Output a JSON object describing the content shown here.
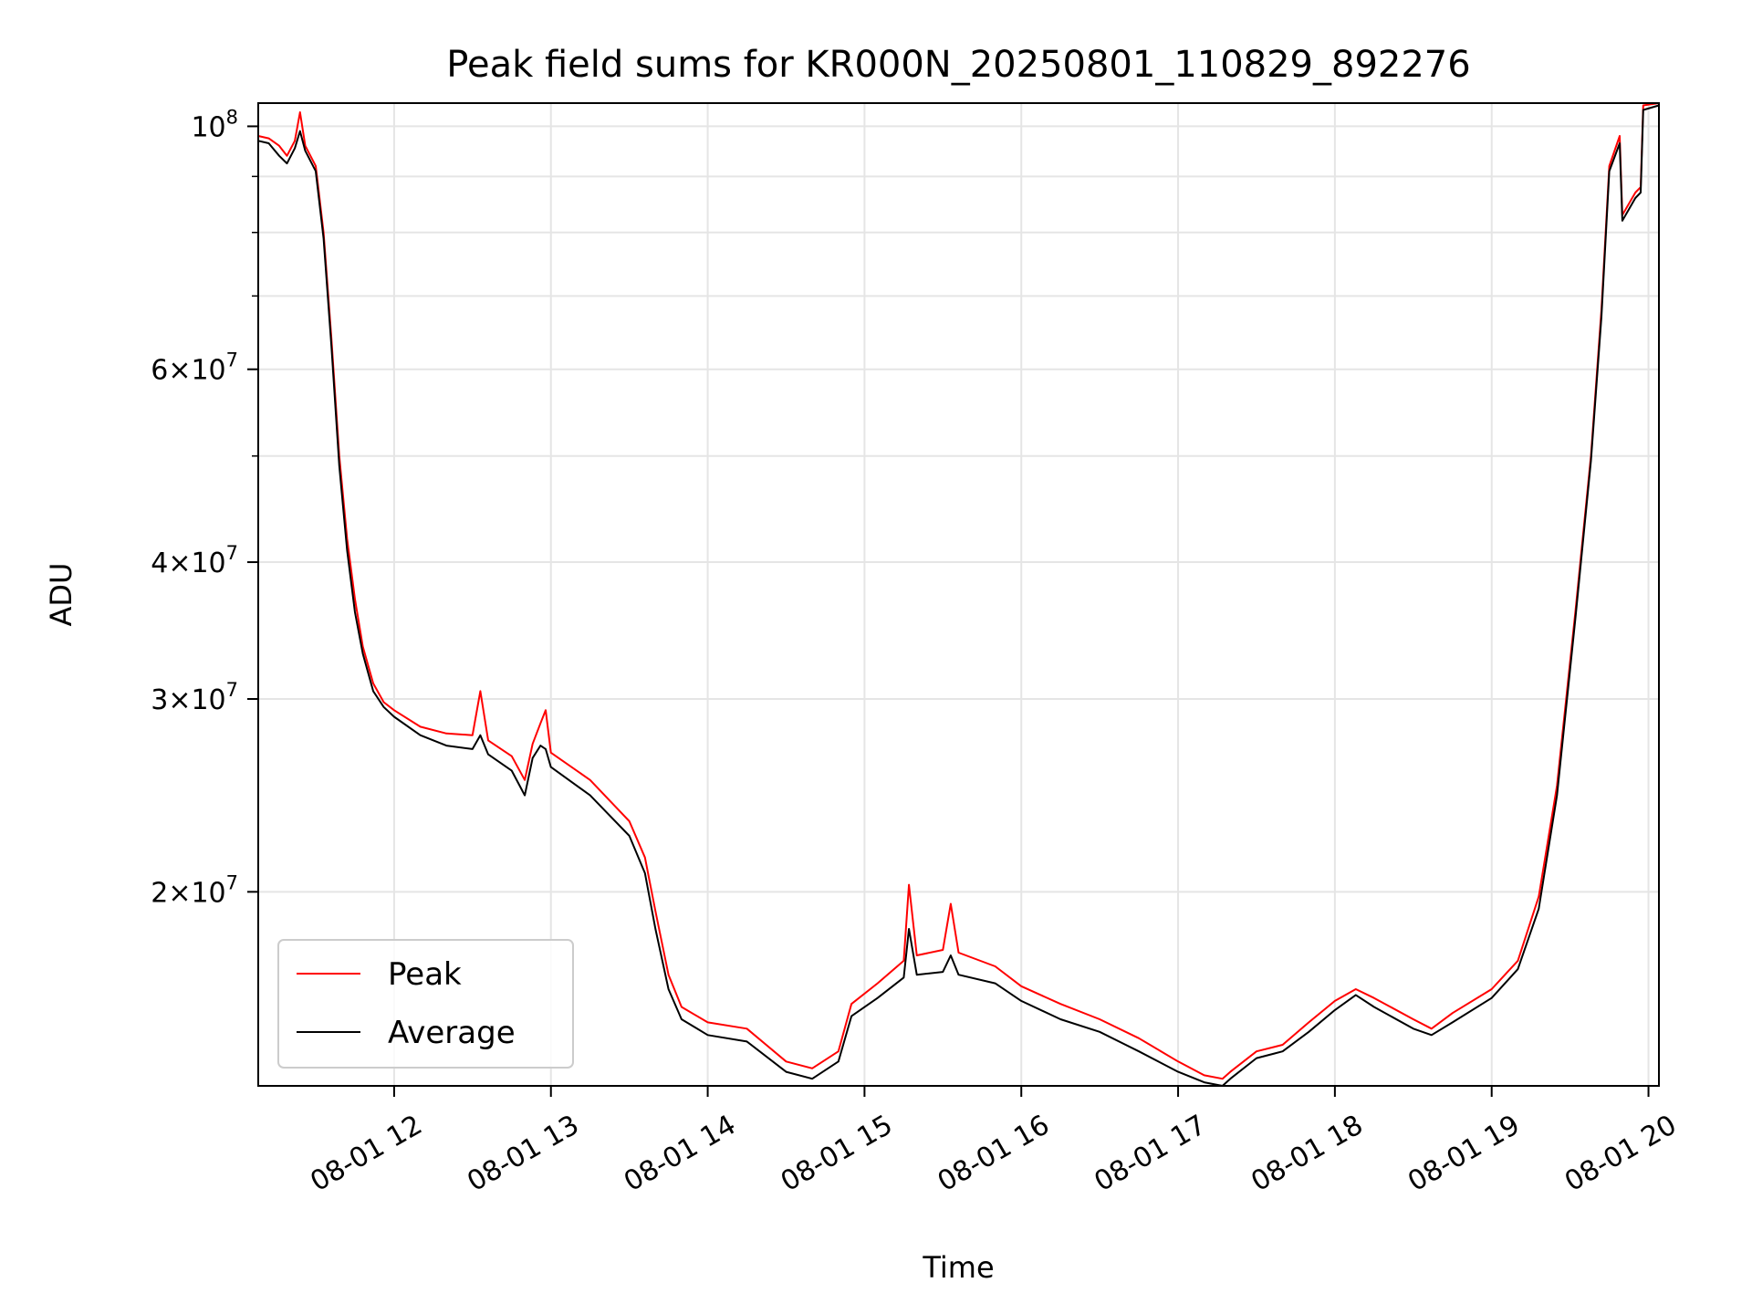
{
  "chart_data": {
    "type": "line",
    "title": "Peak field sums for KR000N_20250801_110829_892276",
    "xlabel": "Time",
    "ylabel": "ADU",
    "yscale": "log",
    "grid": true,
    "legend_position": "lower-left",
    "xlim": [
      "2025-08-01 11:08",
      "2025-08-01 20:04"
    ],
    "ylim": [
      13300000,
      105000000
    ],
    "x_ticks": [
      {
        "value": "2025-08-01 12:00",
        "label": "08-01 12"
      },
      {
        "value": "2025-08-01 13:00",
        "label": "08-01 13"
      },
      {
        "value": "2025-08-01 14:00",
        "label": "08-01 14"
      },
      {
        "value": "2025-08-01 15:00",
        "label": "08-01 15"
      },
      {
        "value": "2025-08-01 16:00",
        "label": "08-01 16"
      },
      {
        "value": "2025-08-01 17:00",
        "label": "08-01 17"
      },
      {
        "value": "2025-08-01 18:00",
        "label": "08-01 18"
      },
      {
        "value": "2025-08-01 19:00",
        "label": "08-01 19"
      },
      {
        "value": "2025-08-01 20:00",
        "label": "08-01 20"
      }
    ],
    "y_major_ticks": [
      {
        "value": 20000000,
        "mantissa": "2",
        "exponent": "7"
      },
      {
        "value": 30000000,
        "mantissa": "3",
        "exponent": "7"
      },
      {
        "value": 40000000,
        "mantissa": "4",
        "exponent": "7"
      },
      {
        "value": 60000000,
        "mantissa": "6",
        "exponent": "7"
      },
      {
        "value": 100000000,
        "mantissa": "",
        "exponent": "8"
      }
    ],
    "y_minor_gridlines": [
      50000000,
      70000000,
      80000000,
      90000000
    ],
    "series": [
      {
        "name": "Peak",
        "color": "#ff0000",
        "points": [
          [
            "2025-08-01 11:08",
            98000000
          ],
          [
            "2025-08-01 11:12",
            97500000
          ],
          [
            "2025-08-01 11:16",
            96000000
          ],
          [
            "2025-08-01 11:19",
            94000000
          ],
          [
            "2025-08-01 11:22",
            97000000
          ],
          [
            "2025-08-01 11:24",
            103000000
          ],
          [
            "2025-08-01 11:26",
            96000000
          ],
          [
            "2025-08-01 11:30",
            92000000
          ],
          [
            "2025-08-01 11:33",
            80000000
          ],
          [
            "2025-08-01 11:36",
            64000000
          ],
          [
            "2025-08-01 11:39",
            50000000
          ],
          [
            "2025-08-01 11:42",
            42000000
          ],
          [
            "2025-08-01 11:45",
            37000000
          ],
          [
            "2025-08-01 11:48",
            33500000
          ],
          [
            "2025-08-01 11:52",
            31000000
          ],
          [
            "2025-08-01 11:56",
            29800000
          ],
          [
            "2025-08-01 12:00",
            29300000
          ],
          [
            "2025-08-01 12:10",
            28300000
          ],
          [
            "2025-08-01 12:20",
            27900000
          ],
          [
            "2025-08-01 12:30",
            27800000
          ],
          [
            "2025-08-01 12:33",
            30500000
          ],
          [
            "2025-08-01 12:36",
            27500000
          ],
          [
            "2025-08-01 12:45",
            26600000
          ],
          [
            "2025-08-01 12:50",
            25300000
          ],
          [
            "2025-08-01 12:53",
            27300000
          ],
          [
            "2025-08-01 12:56",
            28500000
          ],
          [
            "2025-08-01 12:58",
            29300000
          ],
          [
            "2025-08-01 13:00",
            26800000
          ],
          [
            "2025-08-01 13:15",
            25300000
          ],
          [
            "2025-08-01 13:30",
            23200000
          ],
          [
            "2025-08-01 13:36",
            21500000
          ],
          [
            "2025-08-01 13:40",
            19200000
          ],
          [
            "2025-08-01 13:45",
            16800000
          ],
          [
            "2025-08-01 13:50",
            15700000
          ],
          [
            "2025-08-01 14:00",
            15200000
          ],
          [
            "2025-08-01 14:15",
            15000000
          ],
          [
            "2025-08-01 14:30",
            14000000
          ],
          [
            "2025-08-01 14:40",
            13800000
          ],
          [
            "2025-08-01 14:50",
            14300000
          ],
          [
            "2025-08-01 14:55",
            15800000
          ],
          [
            "2025-08-01 15:05",
            16500000
          ],
          [
            "2025-08-01 15:15",
            17300000
          ],
          [
            "2025-08-01 15:17",
            20300000
          ],
          [
            "2025-08-01 15:20",
            17500000
          ],
          [
            "2025-08-01 15:30",
            17700000
          ],
          [
            "2025-08-01 15:33",
            19500000
          ],
          [
            "2025-08-01 15:36",
            17600000
          ],
          [
            "2025-08-01 15:50",
            17100000
          ],
          [
            "2025-08-01 16:00",
            16400000
          ],
          [
            "2025-08-01 16:15",
            15800000
          ],
          [
            "2025-08-01 16:30",
            15300000
          ],
          [
            "2025-08-01 16:45",
            14700000
          ],
          [
            "2025-08-01 17:00",
            14000000
          ],
          [
            "2025-08-01 17:10",
            13600000
          ],
          [
            "2025-08-01 17:17",
            13500000
          ],
          [
            "2025-08-01 17:20",
            13700000
          ],
          [
            "2025-08-01 17:30",
            14300000
          ],
          [
            "2025-08-01 17:40",
            14500000
          ],
          [
            "2025-08-01 17:50",
            15200000
          ],
          [
            "2025-08-01 18:00",
            15900000
          ],
          [
            "2025-08-01 18:08",
            16300000
          ],
          [
            "2025-08-01 18:15",
            16000000
          ],
          [
            "2025-08-01 18:30",
            15300000
          ],
          [
            "2025-08-01 18:37",
            15000000
          ],
          [
            "2025-08-01 18:45",
            15500000
          ],
          [
            "2025-08-01 19:00",
            16300000
          ],
          [
            "2025-08-01 19:10",
            17300000
          ],
          [
            "2025-08-01 19:18",
            19800000
          ],
          [
            "2025-08-01 19:25",
            25000000
          ],
          [
            "2025-08-01 19:32",
            36000000
          ],
          [
            "2025-08-01 19:38",
            50000000
          ],
          [
            "2025-08-01 19:42",
            68000000
          ],
          [
            "2025-08-01 19:45",
            92000000
          ],
          [
            "2025-08-01 19:49",
            98000000
          ],
          [
            "2025-08-01 19:50",
            83000000
          ],
          [
            "2025-08-01 19:55",
            87000000
          ],
          [
            "2025-08-01 19:57",
            88000000
          ],
          [
            "2025-08-01 19:58",
            104500000
          ],
          [
            "2025-08-01 20:04",
            105000000
          ]
        ]
      },
      {
        "name": "Average",
        "color": "#000000",
        "points": [
          [
            "2025-08-01 11:08",
            97000000
          ],
          [
            "2025-08-01 11:12",
            96500000
          ],
          [
            "2025-08-01 11:16",
            94000000
          ],
          [
            "2025-08-01 11:19",
            92500000
          ],
          [
            "2025-08-01 11:22",
            95500000
          ],
          [
            "2025-08-01 11:24",
            99000000
          ],
          [
            "2025-08-01 11:26",
            95000000
          ],
          [
            "2025-08-01 11:30",
            91000000
          ],
          [
            "2025-08-01 11:33",
            79000000
          ],
          [
            "2025-08-01 11:36",
            63000000
          ],
          [
            "2025-08-01 11:39",
            49000000
          ],
          [
            "2025-08-01 11:42",
            41000000
          ],
          [
            "2025-08-01 11:45",
            36000000
          ],
          [
            "2025-08-01 11:48",
            33000000
          ],
          [
            "2025-08-01 11:52",
            30500000
          ],
          [
            "2025-08-01 11:56",
            29500000
          ],
          [
            "2025-08-01 12:00",
            28900000
          ],
          [
            "2025-08-01 12:10",
            27800000
          ],
          [
            "2025-08-01 12:20",
            27200000
          ],
          [
            "2025-08-01 12:30",
            27000000
          ],
          [
            "2025-08-01 12:33",
            27800000
          ],
          [
            "2025-08-01 12:36",
            26700000
          ],
          [
            "2025-08-01 12:45",
            25800000
          ],
          [
            "2025-08-01 12:50",
            24500000
          ],
          [
            "2025-08-01 12:53",
            26500000
          ],
          [
            "2025-08-01 12:56",
            27200000
          ],
          [
            "2025-08-01 12:58",
            27000000
          ],
          [
            "2025-08-01 13:00",
            26000000
          ],
          [
            "2025-08-01 13:15",
            24500000
          ],
          [
            "2025-08-01 13:30",
            22500000
          ],
          [
            "2025-08-01 13:36",
            20800000
          ],
          [
            "2025-08-01 13:40",
            18500000
          ],
          [
            "2025-08-01 13:45",
            16300000
          ],
          [
            "2025-08-01 13:50",
            15300000
          ],
          [
            "2025-08-01 14:00",
            14800000
          ],
          [
            "2025-08-01 14:15",
            14600000
          ],
          [
            "2025-08-01 14:30",
            13700000
          ],
          [
            "2025-08-01 14:40",
            13500000
          ],
          [
            "2025-08-01 14:50",
            14000000
          ],
          [
            "2025-08-01 14:55",
            15400000
          ],
          [
            "2025-08-01 15:05",
            16000000
          ],
          [
            "2025-08-01 15:15",
            16700000
          ],
          [
            "2025-08-01 15:17",
            18500000
          ],
          [
            "2025-08-01 15:20",
            16800000
          ],
          [
            "2025-08-01 15:30",
            16900000
          ],
          [
            "2025-08-01 15:33",
            17500000
          ],
          [
            "2025-08-01 15:36",
            16800000
          ],
          [
            "2025-08-01 15:50",
            16500000
          ],
          [
            "2025-08-01 16:00",
            15900000
          ],
          [
            "2025-08-01 16:15",
            15300000
          ],
          [
            "2025-08-01 16:30",
            14900000
          ],
          [
            "2025-08-01 16:45",
            14300000
          ],
          [
            "2025-08-01 17:00",
            13700000
          ],
          [
            "2025-08-01 17:10",
            13400000
          ],
          [
            "2025-08-01 17:17",
            13300000
          ],
          [
            "2025-08-01 17:20",
            13500000
          ],
          [
            "2025-08-01 17:30",
            14100000
          ],
          [
            "2025-08-01 17:40",
            14300000
          ],
          [
            "2025-08-01 17:50",
            14900000
          ],
          [
            "2025-08-01 18:00",
            15600000
          ],
          [
            "2025-08-01 18:08",
            16100000
          ],
          [
            "2025-08-01 18:15",
            15700000
          ],
          [
            "2025-08-01 18:30",
            15000000
          ],
          [
            "2025-08-01 18:37",
            14800000
          ],
          [
            "2025-08-01 18:45",
            15200000
          ],
          [
            "2025-08-01 19:00",
            16000000
          ],
          [
            "2025-08-01 19:10",
            17000000
          ],
          [
            "2025-08-01 19:18",
            19300000
          ],
          [
            "2025-08-01 19:25",
            24500000
          ],
          [
            "2025-08-01 19:32",
            35500000
          ],
          [
            "2025-08-01 19:38",
            49500000
          ],
          [
            "2025-08-01 19:42",
            67000000
          ],
          [
            "2025-08-01 19:45",
            91000000
          ],
          [
            "2025-08-01 19:49",
            96500000
          ],
          [
            "2025-08-01 19:50",
            82000000
          ],
          [
            "2025-08-01 19:55",
            86000000
          ],
          [
            "2025-08-01 19:57",
            87000000
          ],
          [
            "2025-08-01 19:58",
            103500000
          ],
          [
            "2025-08-01 20:04",
            104500000
          ]
        ]
      }
    ]
  }
}
